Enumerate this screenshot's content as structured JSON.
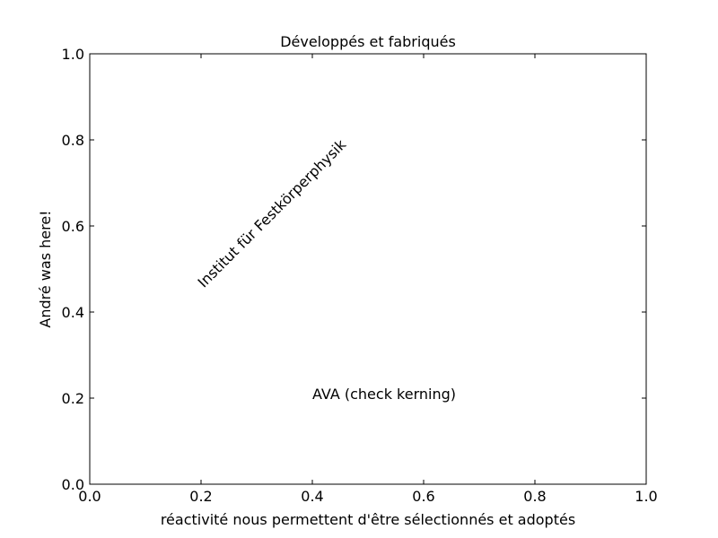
{
  "chart_data": {
    "type": "text",
    "title": "Développés et fabriqués",
    "x_label": "réactivité nous permettent d'être sélectionnés et adoptés",
    "y_label": "André was here!",
    "xlim": [
      0,
      1
    ],
    "ylim": [
      0,
      1
    ],
    "xticks": [
      {
        "value": 0,
        "label": "0.0"
      },
      0.2,
      0.4,
      0.6,
      0.8,
      {
        "value": 1,
        "label": "1.0"
      }
    ],
    "yticks": [
      {
        "value": 0,
        "label": "0.0"
      },
      0.2,
      0.4,
      0.6,
      0.8,
      {
        "value": 1,
        "label": "1.0"
      }
    ],
    "annotations": [
      "Institut für Festkörperphysik",
      "AVA (check kerning)"
    ]
  }
}
